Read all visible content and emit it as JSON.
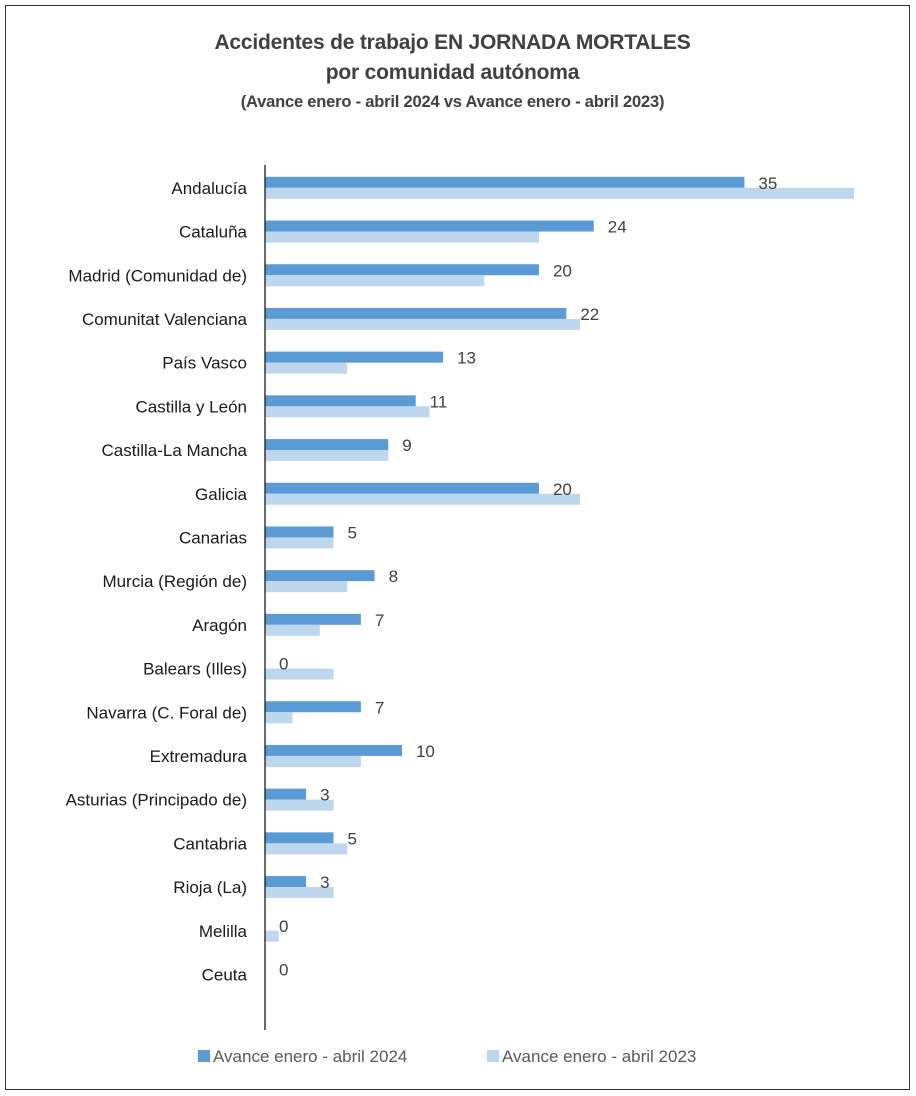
{
  "chart_data": {
    "type": "bar",
    "orientation": "horizontal",
    "title": "Accidentes de trabajo EN JORNADA MORTALES",
    "title_line2": "por comunidad autónoma",
    "subtitle": "(Avance enero - abril 2024 vs Avance enero - abril 2023)",
    "categories": [
      "Andalucía",
      "Cataluña",
      "Madrid (Comunidad de)",
      "Comunitat Valenciana",
      "País Vasco",
      "Castilla y León",
      "Castilla-La Mancha",
      "Galicia",
      "Canarias",
      "Murcia (Región de)",
      "Aragón",
      "Balears (Illes)",
      "Navarra (C. Foral de)",
      "Extremadura",
      "Asturias (Principado de)",
      "Cantabria",
      "Rioja (La)",
      "Melilla",
      "Ceuta"
    ],
    "series": [
      {
        "name": "Avance enero - abril 2024",
        "color": "#5b9bd5",
        "values": [
          35,
          24,
          20,
          22,
          13,
          11,
          9,
          20,
          5,
          8,
          7,
          0,
          7,
          10,
          3,
          5,
          3,
          0,
          0
        ],
        "labels": [
          "35",
          "24",
          "20",
          "22",
          "13",
          "11",
          "9",
          "20",
          "5",
          "8",
          "7",
          "0",
          "7",
          "10",
          "3",
          "5",
          "3",
          "0",
          "0"
        ]
      },
      {
        "name": "Avance enero - abril 2023",
        "color": "#bdd7ee",
        "values": [
          43,
          20,
          16,
          23,
          6,
          12,
          9,
          23,
          5,
          6,
          4,
          5,
          2,
          7,
          5,
          6,
          5,
          1,
          0
        ]
      }
    ],
    "xlim": [
      0,
      43
    ],
    "grid": false,
    "legend_position": "bottom"
  }
}
